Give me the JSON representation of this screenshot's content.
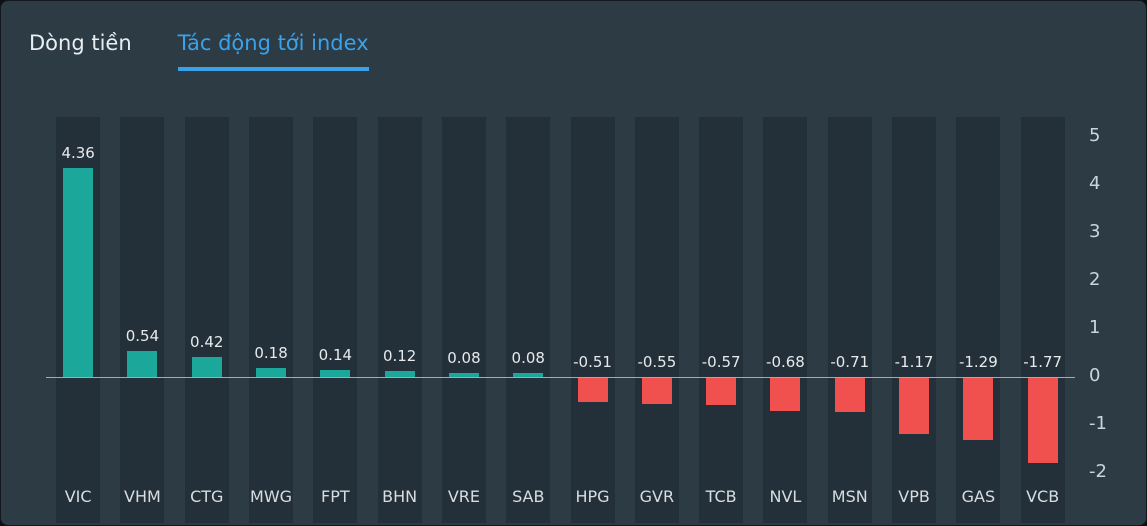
{
  "tabs": [
    {
      "label": "Dòng tiền",
      "active": false
    },
    {
      "label": "Tác động tới index",
      "active": true
    }
  ],
  "chart_data": {
    "type": "bar",
    "categories": [
      "VIC",
      "VHM",
      "CTG",
      "MWG",
      "FPT",
      "BHN",
      "VRE",
      "SAB",
      "HPG",
      "GVR",
      "TCB",
      "NVL",
      "MSN",
      "VPB",
      "GAS",
      "VCB"
    ],
    "values": [
      4.36,
      0.54,
      0.42,
      0.18,
      0.14,
      0.12,
      0.08,
      0.08,
      -0.51,
      -0.55,
      -0.57,
      -0.68,
      -0.71,
      -1.17,
      -1.29,
      -1.77
    ],
    "title": "",
    "xlabel": "",
    "ylabel": "",
    "ylim": [
      -2,
      5
    ],
    "yticks": [
      5,
      4,
      3,
      2,
      1,
      0,
      -1,
      -2
    ],
    "y_axis_side": "right",
    "grid": "off",
    "legend": "none",
    "colors": {
      "positive": "#1ba89a",
      "negative": "#f0514f"
    }
  }
}
